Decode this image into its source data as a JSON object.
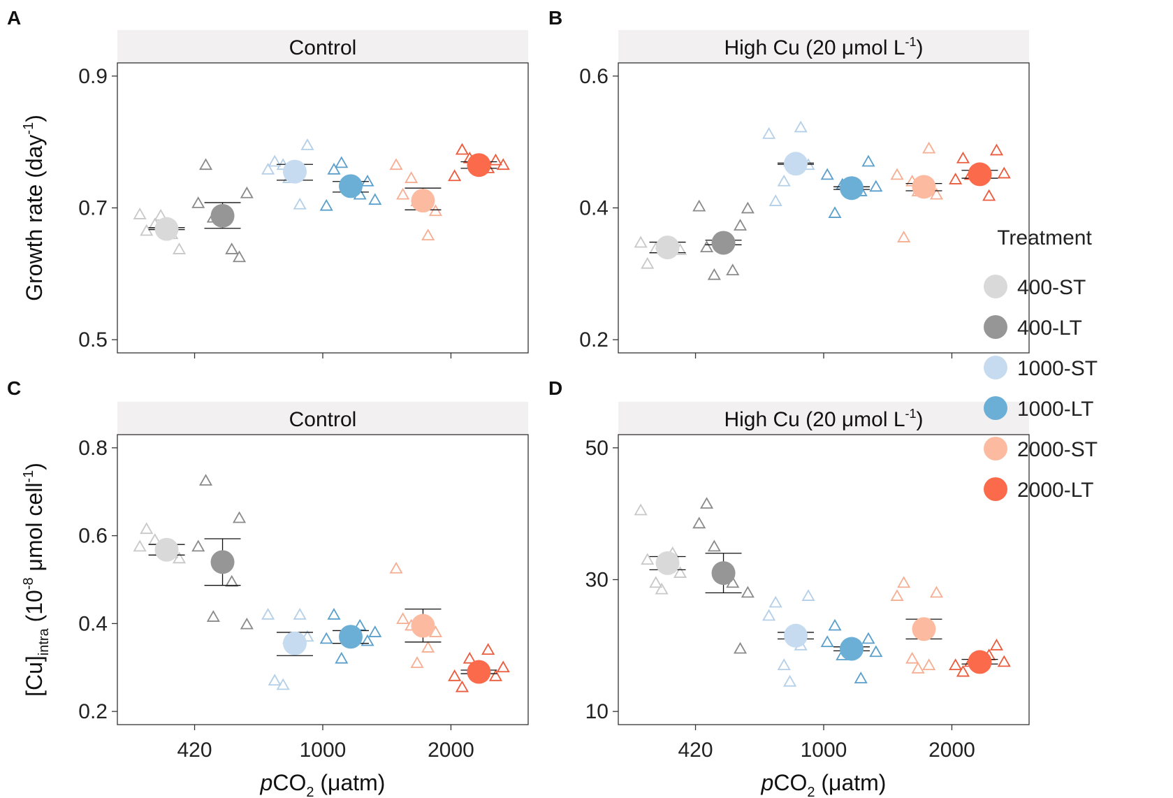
{
  "chart_data": [
    {
      "panel_label": "A",
      "type": "scatter",
      "strip_title": "Control",
      "strip_title_sup": "",
      "strip_title_end": "",
      "ylabel_main": "Growth rate (day",
      "ylabel_sup": "-1",
      "ylabel_end": ")",
      "ylabel_sub": "",
      "ylim": [
        0.48,
        0.92
      ],
      "yticks": [
        0.5,
        0.7,
        0.9
      ],
      "ytick_labels": [
        "0.5",
        "0.7",
        "0.9"
      ],
      "show_xticklabels": false,
      "series": [
        {
          "name": "400-ST",
          "mean": 0.668,
          "err": [
            0.667,
            0.67
          ],
          "reps": [
            0.69,
            0.665,
            0.675,
            0.688,
            0.66,
            0.637
          ]
        },
        {
          "name": "400-LT",
          "mean": 0.688,
          "err": [
            0.669,
            0.708
          ],
          "reps": [
            0.707,
            0.765,
            0.685,
            0.637,
            0.625,
            0.722
          ]
        },
        {
          "name": "1000-ST",
          "mean": 0.755,
          "err": [
            0.742,
            0.766
          ],
          "reps": [
            0.758,
            0.77,
            0.765,
            0.745,
            0.705,
            0.795
          ]
        },
        {
          "name": "1000-LT",
          "mean": 0.733,
          "err": [
            0.724,
            0.74
          ],
          "reps": [
            0.703,
            0.758,
            0.768,
            0.72,
            0.74,
            0.712
          ]
        },
        {
          "name": "2000-ST",
          "mean": 0.711,
          "err": [
            0.697,
            0.73
          ],
          "reps": [
            0.765,
            0.72,
            0.745,
            0.71,
            0.658,
            0.695
          ]
        },
        {
          "name": "2000-LT",
          "mean": 0.765,
          "err": [
            0.76,
            0.77
          ],
          "reps": [
            0.748,
            0.788,
            0.775,
            0.76,
            0.772,
            0.765
          ]
        }
      ]
    },
    {
      "panel_label": "B",
      "type": "scatter",
      "strip_title": "High Cu (20 μmol L",
      "strip_title_sup": "-1",
      "strip_title_end": ")",
      "ylabel_main": "",
      "ylabel_sup": "",
      "ylabel_end": "",
      "ylabel_sub": "",
      "ylim": [
        0.18,
        0.62
      ],
      "yticks": [
        0.2,
        0.4,
        0.6
      ],
      "ytick_labels": [
        "0.2",
        "0.4",
        "0.6"
      ],
      "show_xticklabels": false,
      "series": [
        {
          "name": "400-ST",
          "mean": 0.34,
          "err": [
            0.332,
            0.348
          ],
          "reps": [
            0.347,
            0.315,
            0.338,
            0.345,
            0.34,
            0.336
          ]
        },
        {
          "name": "400-LT",
          "mean": 0.347,
          "err": [
            0.344,
            0.351
          ],
          "reps": [
            0.402,
            0.34,
            0.298,
            0.305,
            0.373,
            0.399
          ]
        },
        {
          "name": "1000-ST",
          "mean": 0.467,
          "err": [
            0.466,
            0.468
          ],
          "reps": [
            0.512,
            0.41,
            0.44,
            0.47,
            0.522,
            0.465
          ]
        },
        {
          "name": "1000-LT",
          "mean": 0.43,
          "err": [
            0.428,
            0.432
          ],
          "reps": [
            0.45,
            0.392,
            0.435,
            0.425,
            0.47,
            0.432
          ]
        },
        {
          "name": "2000-ST",
          "mean": 0.432,
          "err": [
            0.426,
            0.437
          ],
          "reps": [
            0.45,
            0.355,
            0.44,
            0.425,
            0.49,
            0.42
          ]
        },
        {
          "name": "2000-LT",
          "mean": 0.451,
          "err": [
            0.445,
            0.457
          ],
          "reps": [
            0.443,
            0.475,
            0.45,
            0.418,
            0.487,
            0.452
          ]
        }
      ]
    },
    {
      "panel_label": "C",
      "type": "scatter",
      "strip_title": "Control",
      "strip_title_sup": "",
      "strip_title_end": "",
      "ylabel_main": "[Cu]",
      "ylabel_sub": "intra",
      "ylabel_mid": " (10",
      "ylabel_sup": "-8",
      "ylabel_end": " μmol cell",
      "ylabel_sup2": "-1",
      "ylabel_end2": ")",
      "ylim": [
        0.17,
        0.83
      ],
      "yticks": [
        0.2,
        0.4,
        0.6,
        0.8
      ],
      "ytick_labels": [
        "0.2",
        "0.4",
        "0.6",
        "0.8"
      ],
      "show_xticklabels": true,
      "series": [
        {
          "name": "400-ST",
          "mean": 0.568,
          "err": [
            0.556,
            0.58
          ],
          "reps": [
            0.575,
            0.615,
            0.59,
            0.565,
            0.56,
            0.548
          ]
        },
        {
          "name": "400-LT",
          "mean": 0.54,
          "err": [
            0.487,
            0.593
          ],
          "reps": [
            0.575,
            0.725,
            0.415,
            0.495,
            0.64,
            0.398
          ]
        },
        {
          "name": "1000-ST",
          "mean": 0.355,
          "err": [
            0.327,
            0.38
          ],
          "reps": [
            0.42,
            0.27,
            0.26,
            0.365,
            0.42,
            0.37
          ]
        },
        {
          "name": "1000-LT",
          "mean": 0.37,
          "err": [
            0.355,
            0.384
          ],
          "reps": [
            0.365,
            0.42,
            0.32,
            0.395,
            0.36,
            0.38
          ]
        },
        {
          "name": "2000-ST",
          "mean": 0.395,
          "err": [
            0.358,
            0.433
          ],
          "reps": [
            0.525,
            0.41,
            0.395,
            0.31,
            0.345,
            0.38
          ]
        },
        {
          "name": "2000-LT",
          "mean": 0.29,
          "err": [
            0.286,
            0.294
          ],
          "reps": [
            0.28,
            0.255,
            0.32,
            0.34,
            0.28,
            0.3
          ]
        }
      ]
    },
    {
      "panel_label": "D",
      "type": "scatter",
      "strip_title": "High Cu (20 μmol L",
      "strip_title_sup": "-1",
      "strip_title_end": ")",
      "ylabel_main": "",
      "ylabel_sup": "",
      "ylabel_end": "",
      "ylabel_sub": "",
      "ylim": [
        8,
        52
      ],
      "yticks": [
        10,
        30,
        50
      ],
      "ytick_labels": [
        "10",
        "30",
        "50"
      ],
      "show_xticklabels": true,
      "series": [
        {
          "name": "400-ST",
          "mean": 32.5,
          "err": [
            31.5,
            33.5
          ],
          "reps": [
            40.5,
            33.0,
            29.5,
            28.5,
            34.0,
            31.0
          ]
        },
        {
          "name": "400-LT",
          "mean": 31.0,
          "err": [
            28.0,
            34.0
          ],
          "reps": [
            38.5,
            41.5,
            35.0,
            29.5,
            19.5,
            28.0
          ]
        },
        {
          "name": "1000-ST",
          "mean": 21.5,
          "err": [
            21.0,
            22.0
          ],
          "reps": [
            24.5,
            26.5,
            17.0,
            14.5,
            20.0,
            27.5
          ]
        },
        {
          "name": "1000-LT",
          "mean": 19.5,
          "err": [
            19.2,
            19.8
          ],
          "reps": [
            20.5,
            23.0,
            18.5,
            15.0,
            21.0,
            19.0
          ]
        },
        {
          "name": "2000-ST",
          "mean": 22.5,
          "err": [
            21.0,
            24.0
          ],
          "reps": [
            27.5,
            29.5,
            18.0,
            16.5,
            17.0,
            28.0
          ]
        },
        {
          "name": "2000-LT",
          "mean": 17.5,
          "err": [
            17.2,
            17.9
          ],
          "reps": [
            17.0,
            16.0,
            17.5,
            18.5,
            20.0,
            17.5
          ]
        }
      ]
    }
  ],
  "groups": {
    "categories": [
      "420",
      "1000",
      "2000"
    ],
    "xlabel_italic": "p",
    "xlabel_main": "CO",
    "xlabel_sub": "2",
    "xlabel_end": " (μatm)"
  },
  "legend": {
    "title": "Treatment",
    "items": [
      {
        "label": "400-ST",
        "color": "#d9d9d9"
      },
      {
        "label": "400-LT",
        "color": "#969696"
      },
      {
        "label": "1000-ST",
        "color": "#c6dbef"
      },
      {
        "label": "1000-LT",
        "color": "#6baed6"
      },
      {
        "label": "2000-ST",
        "color": "#fcbba1"
      },
      {
        "label": "2000-LT",
        "color": "#fb6a4a"
      }
    ]
  },
  "colors": {
    "triangle": {
      "400-ST": "#c8c8c8",
      "400-LT": "#8a8a8a",
      "1000-ST": "#b4cfe8",
      "1000-LT": "#5a9fcc",
      "2000-ST": "#f7ad91",
      "2000-LT": "#ec5a3c"
    },
    "strip_bg": "#f2f0f0",
    "axis": "#333333"
  }
}
